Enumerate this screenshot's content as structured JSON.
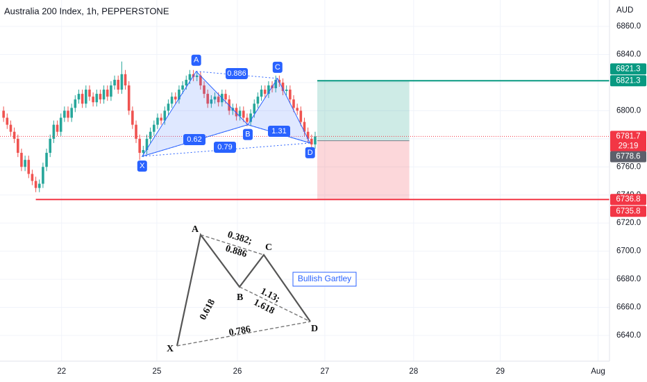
{
  "chart_data": {
    "type": "candlestick",
    "title": "Australia 200 Index, 1h, PEPPERSTONE",
    "currency": "AUD",
    "up_color": "#26a69a",
    "down_color": "#ef5350",
    "xlim": [
      0,
      170.2
    ],
    "ylim": [
      6621.7,
      6878.8
    ],
    "xticks": [
      {
        "value": 17.2,
        "label": "22"
      },
      {
        "value": 43.8,
        "label": "25"
      },
      {
        "value": 66.3,
        "label": "26"
      },
      {
        "value": 90.7,
        "label": "27"
      },
      {
        "value": 115.5,
        "label": "28"
      },
      {
        "value": 139.7,
        "label": "29"
      },
      {
        "value": 167,
        "label": "Aug"
      }
    ],
    "yticks": [
      {
        "value": 6860,
        "label": "6860.0"
      },
      {
        "value": 6840,
        "label": "6840.0"
      },
      {
        "value": 6820,
        "label": "6820.0"
      },
      {
        "value": 6800,
        "label": "6800.0"
      },
      {
        "value": 6780,
        "label": "6780.0"
      },
      {
        "value": 6760,
        "label": "6760.0"
      },
      {
        "value": 6740,
        "label": "6740.0"
      },
      {
        "value": 6720,
        "label": "6720.0"
      },
      {
        "value": 6700,
        "label": "6700.0"
      },
      {
        "value": 6680,
        "label": "6680.0"
      },
      {
        "value": 6660,
        "label": "6660.0"
      },
      {
        "value": 6640,
        "label": "6640.0"
      }
    ],
    "candles": {
      "x": [
        1,
        2,
        3,
        4,
        5,
        6,
        7,
        8,
        9,
        10,
        11,
        12,
        13,
        14,
        15,
        16,
        17,
        18,
        19,
        20,
        21,
        22,
        23,
        24,
        25,
        26,
        27,
        28,
        29,
        30,
        31,
        32,
        33,
        34,
        35,
        36,
        37,
        38,
        39,
        40,
        41,
        42,
        43,
        44,
        45,
        46,
        47,
        48,
        49,
        50,
        51,
        52,
        53,
        54,
        55,
        56,
        57,
        58,
        59,
        60,
        61,
        62,
        63,
        64,
        65,
        66,
        67,
        68,
        69,
        70,
        71,
        72,
        73,
        74,
        75,
        76,
        77,
        78,
        79,
        80,
        81,
        82,
        83,
        84,
        85,
        86,
        87,
        88
      ],
      "open": [
        6800,
        6795,
        6790,
        6785,
        6780,
        6770,
        6760,
        6765,
        6755,
        6750,
        6745,
        6748,
        6760,
        6770,
        6780,
        6790,
        6785,
        6795,
        6800,
        6795,
        6802,
        6808,
        6812,
        6805,
        6815,
        6810,
        6806,
        6812,
        6808,
        6815,
        6810,
        6818,
        6822,
        6815,
        6826,
        6818,
        6800,
        6790,
        6780,
        6770,
        6772,
        6780,
        6785,
        6790,
        6795,
        6793,
        6800,
        6805,
        6810,
        6808,
        6815,
        6818,
        6822,
        6826,
        6824,
        6825,
        6818,
        6812,
        6805,
        6808,
        6810,
        6806,
        6812,
        6808,
        6800,
        6802,
        6796,
        6800,
        6795,
        6792,
        6798,
        6805,
        6810,
        6815,
        6812,
        6818,
        6816,
        6822,
        6820,
        6814,
        6815,
        6808,
        6802,
        6800,
        6792,
        6785,
        6780,
        6776
      ],
      "high": [
        6803,
        6798,
        6793,
        6788,
        6783,
        6773,
        6768,
        6768,
        6758,
        6753,
        6751,
        6763,
        6773,
        6783,
        6793,
        6793,
        6798,
        6803,
        6803,
        6805,
        6811,
        6815,
        6815,
        6818,
        6818,
        6813,
        6815,
        6815,
        6818,
        6818,
        6821,
        6825,
        6825,
        6835,
        6829,
        6821,
        6803,
        6793,
        6783,
        6775,
        6783,
        6788,
        6793,
        6798,
        6798,
        6803,
        6808,
        6813,
        6813,
        6818,
        6821,
        6825,
        6829,
        6829,
        6828,
        6828,
        6821,
        6815,
        6811,
        6813,
        6813,
        6815,
        6815,
        6811,
        6805,
        6805,
        6803,
        6803,
        6798,
        6801,
        6808,
        6813,
        6818,
        6818,
        6821,
        6821,
        6825,
        6825,
        6823,
        6818,
        6818,
        6811,
        6805,
        6803,
        6795,
        6788,
        6783,
        6785
      ],
      "low": [
        6792,
        6787,
        6782,
        6777,
        6767,
        6757,
        6757,
        6752,
        6747,
        6742,
        6742,
        6745,
        6757,
        6767,
        6777,
        6782,
        6782,
        6792,
        6792,
        6792,
        6799,
        6805,
        6802,
        6802,
        6807,
        6803,
        6803,
        6805,
        6805,
        6807,
        6807,
        6815,
        6812,
        6812,
        6815,
        6797,
        6787,
        6777,
        6765,
        6767,
        6769,
        6777,
        6782,
        6787,
        6790,
        6790,
        6797,
        6802,
        6805,
        6805,
        6812,
        6815,
        6819,
        6821,
        6821,
        6815,
        6809,
        6802,
        6802,
        6805,
        6803,
        6803,
        6805,
        6797,
        6797,
        6793,
        6793,
        6792,
        6789,
        6789,
        6795,
        6802,
        6807,
        6809,
        6809,
        6813,
        6813,
        6817,
        6811,
        6811,
        6805,
        6799,
        6797,
        6789,
        6782,
        6777,
        6772,
        6773
      ],
      "close": [
        6795,
        6790,
        6785,
        6780,
        6770,
        6760,
        6765,
        6755,
        6750,
        6745,
        6748,
        6760,
        6770,
        6780,
        6790,
        6785,
        6795,
        6800,
        6795,
        6802,
        6808,
        6812,
        6805,
        6815,
        6810,
        6806,
        6812,
        6808,
        6815,
        6810,
        6818,
        6822,
        6815,
        6826,
        6818,
        6800,
        6790,
        6780,
        6770,
        6772,
        6780,
        6785,
        6790,
        6795,
        6793,
        6800,
        6805,
        6810,
        6808,
        6815,
        6818,
        6822,
        6826,
        6824,
        6825,
        6818,
        6812,
        6805,
        6808,
        6810,
        6806,
        6812,
        6808,
        6800,
        6802,
        6796,
        6800,
        6795,
        6792,
        6798,
        6805,
        6810,
        6815,
        6812,
        6818,
        6816,
        6822,
        6820,
        6814,
        6815,
        6808,
        6802,
        6800,
        6792,
        6785,
        6780,
        6776,
        6781.7
      ]
    },
    "last_price": 6781.7,
    "pattern": {
      "points": [
        {
          "label": "X",
          "x": 39.7,
          "y": 6767.5
        },
        {
          "label": "A",
          "x": 54.8,
          "y": 6828
        },
        {
          "label": "B",
          "x": 69.2,
          "y": 6790
        },
        {
          "label": "C",
          "x": 77.5,
          "y": 6823
        },
        {
          "label": "D",
          "x": 86.6,
          "y": 6777
        }
      ],
      "ratios": [
        0.62,
        0.886,
        0.79,
        1.31
      ]
    },
    "position": {
      "start": 88.6,
      "end": 114.3,
      "entry": 6778.6,
      "target": 6821.3,
      "stop": 6736.8
    },
    "horizontal_lines": [
      {
        "value": 6821.3,
        "from": 88.6,
        "color": "#089981"
      },
      {
        "value": 6736.8,
        "from": 10,
        "color": "#f23645"
      }
    ],
    "axis_badges": [
      {
        "value": 6821.3,
        "color": "#089981"
      },
      {
        "value": 6821.3,
        "color": "#089981"
      },
      {
        "value": 6781.7,
        "color": "#f23645",
        "countdown": "29:19"
      },
      {
        "value": 6778.6,
        "color": "#5d606b"
      },
      {
        "value": 6736.8,
        "color": "#f23645"
      },
      {
        "value": 6735.8,
        "color": "#f23645"
      }
    ],
    "inset": {
      "title": "Bullish Gartley",
      "points": [
        "A",
        "B",
        "C",
        "D",
        "X"
      ],
      "ratios": [
        "0.382;",
        "0.886",
        "1.13;",
        "1.618",
        "0.618",
        "0.786"
      ]
    }
  }
}
